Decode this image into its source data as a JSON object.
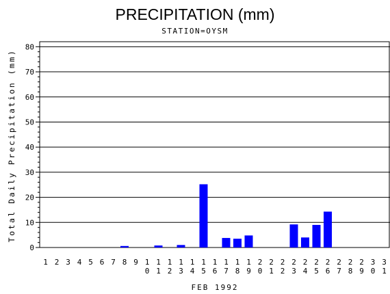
{
  "chart_data": {
    "type": "bar",
    "title": "PRECIPITATION (mm)",
    "subtitle": "STATION=OYSM",
    "ylabel": "Total Daily Precipitation (mm)",
    "xlabel": "FEB 1992",
    "ylim": [
      0,
      82
    ],
    "yticks": [
      0,
      10,
      20,
      30,
      40,
      50,
      60,
      70,
      80
    ],
    "grid": true,
    "bar_color": "#0000ff",
    "categories": [
      "1",
      "2",
      "3",
      "4",
      "5",
      "6",
      "7",
      "8",
      "9",
      "10",
      "11",
      "12",
      "13",
      "14",
      "15",
      "16",
      "17",
      "18",
      "19",
      "20",
      "21",
      "22",
      "23",
      "24",
      "25",
      "26",
      "27",
      "28",
      "29",
      "30",
      "31"
    ],
    "values": [
      0,
      0,
      0,
      0,
      0,
      0,
      0,
      0.6,
      0,
      0,
      0.8,
      0,
      1.0,
      0,
      25.2,
      0,
      3.8,
      3.5,
      4.8,
      0,
      0,
      0,
      9.2,
      4.0,
      9.0,
      14.3,
      0,
      0,
      0,
      0,
      0
    ]
  }
}
